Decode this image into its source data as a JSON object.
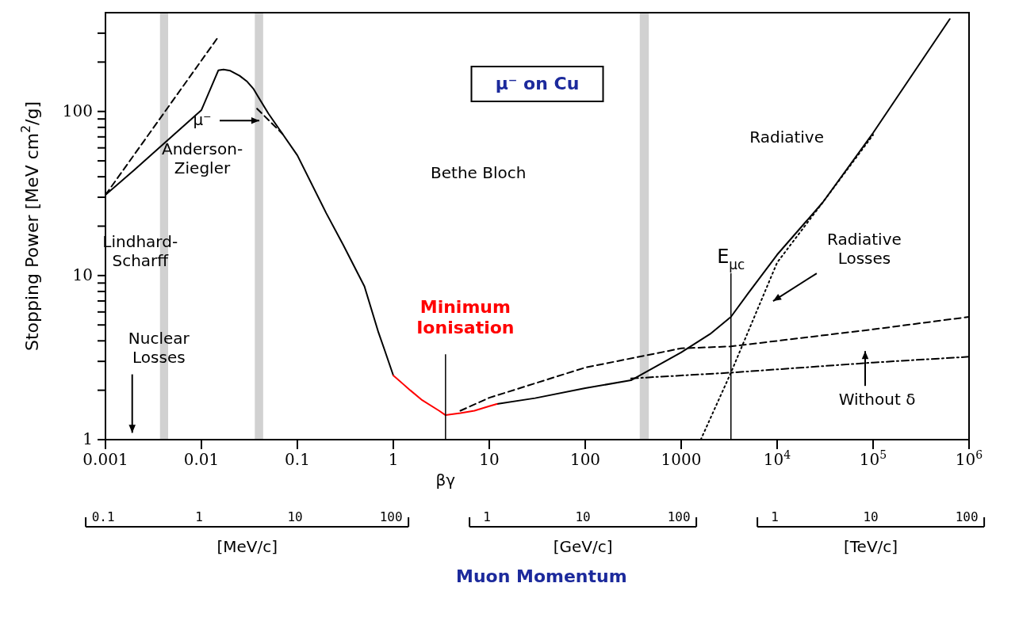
{
  "chart_data": {
    "type": "line",
    "title": "μ⁻ on Cu",
    "xlabel": "βγ",
    "ylabel": "Stopping Power [MeV cm$^{2}$/g]",
    "log": "xy",
    "marker": "none",
    "xlim": [
      0.001,
      1000000
    ],
    "xticks": [
      0.001,
      0.01,
      0.1,
      1,
      10,
      100,
      1000,
      {
        "value": 10000,
        "label": "10$^{4}$"
      },
      {
        "value": 100000,
        "label": "10$^{5}$"
      },
      {
        "value": 1000000,
        "label": "10$^{6}$"
      }
    ],
    "ylim": [
      1,
      400
    ],
    "yticks": [
      1,
      {
        "value": 2,
        "label": null
      },
      {
        "value": 3,
        "label": null
      },
      {
        "value": 4,
        "label": null
      },
      {
        "value": 5,
        "label": null
      },
      {
        "value": 6,
        "label": null
      },
      {
        "value": 7,
        "label": null
      },
      {
        "value": 8,
        "label": null
      },
      {
        "value": 9,
        "label": null
      },
      10,
      {
        "value": 20,
        "label": null
      },
      {
        "value": 30,
        "label": null
      },
      {
        "value": 40,
        "label": null
      },
      {
        "value": 50,
        "label": null
      },
      {
        "value": 60,
        "label": null
      },
      {
        "value": 70,
        "label": null
      },
      {
        "value": 80,
        "label": null
      },
      {
        "value": 90,
        "label": null
      },
      100,
      {
        "value": 200,
        "label": null
      },
      {
        "value": 300,
        "label": null
      }
    ],
    "series": [
      {
        "color": "#000000",
        "line_style": "solid",
        "x": [
          0.001,
          0.002,
          0.005,
          0.01,
          0.015,
          0.017,
          0.02,
          0.025,
          0.03,
          0.035,
          0.04,
          0.05,
          0.07,
          0.1,
          0.2,
          0.3,
          0.5,
          0.7,
          0.8,
          1,
          2,
          3.5,
          5,
          10,
          12,
          30,
          100,
          300,
          1000,
          2000,
          3300,
          5000,
          10000,
          30000,
          100000,
          630000
        ],
        "values": [
          31,
          44,
          71,
          102,
          178,
          180,
          177,
          165,
          152,
          137,
          120,
          97,
          73,
          54,
          24,
          15.4,
          8.6,
          4.5,
          3.6,
          2.46,
          null,
          null,
          null,
          null,
          1.65,
          1.79,
          2.06,
          2.3,
          3.4,
          4.4,
          5.6,
          7.8,
          13.4,
          28,
          74,
          366
        ]
      },
      {
        "color": "#000000",
        "line_style": "dashed",
        "x": [
          0.001,
          0.015
        ],
        "values": [
          31,
          285
        ]
      },
      {
        "color": "#000000",
        "line_style": "dashed",
        "x": [
          0.038,
          0.07
        ],
        "values": [
          104,
          73
        ]
      },
      {
        "color": "#000000",
        "line_style": "dashed",
        "x": [
          5,
          10,
          100,
          1000,
          3300,
          100000,
          1000000
        ],
        "values": [
          1.5,
          1.8,
          2.75,
          3.6,
          3.7,
          4.7,
          5.6
        ]
      },
      {
        "color": "#000000",
        "line_style": "dashdot",
        "x": [
          300,
          1000,
          3300,
          100000,
          1000000
        ],
        "values": [
          2.36,
          2.46,
          2.56,
          2.95,
          3.2
        ]
      },
      {
        "color": "#000000",
        "line_style": "dotted",
        "x": [
          1600,
          3300,
          10000,
          30000,
          100000
        ],
        "values": [
          1,
          2.56,
          12,
          28,
          72
        ]
      },
      {
        "color": "#ff0000",
        "line_style": "solid",
        "x": [
          1,
          1.5,
          2,
          3,
          3.5,
          5,
          7,
          10,
          12
        ],
        "values": [
          2.46,
          2.0,
          1.74,
          1.5,
          1.41,
          1.45,
          1.5,
          1.6,
          1.65
        ]
      }
    ],
    "bands": [
      {
        "axis": "x",
        "from": 0.0037,
        "to": 0.0045,
        "color": "#cccccc"
      },
      {
        "axis": "x",
        "from": 0.036,
        "to": 0.044,
        "color": "#cccccc"
      },
      {
        "axis": "x",
        "from": 370,
        "to": 460,
        "color": "#cccccc"
      }
    ],
    "ref_lines": [
      {
        "axis": "x",
        "value": 3.5,
        "label": "Minimum\nIonisation"
      },
      {
        "axis": "x",
        "value": 3300,
        "label": "E$_{μc}$"
      }
    ],
    "annotations": [
      "μ⁻",
      "Anderson-\nZiegler",
      "Lindhard-\nScharff",
      "Nuclear\nLosses",
      "Bethe Bloch",
      "Radiative",
      "Radiative\nLosses",
      "Without δ",
      "0.1",
      "1",
      "10",
      "100",
      "[MeV/c]",
      "1",
      "10",
      "100",
      "[GeV/c]",
      "1",
      "10",
      "100",
      "[TeV/c]",
      "Muon Momentum"
    ]
  }
}
